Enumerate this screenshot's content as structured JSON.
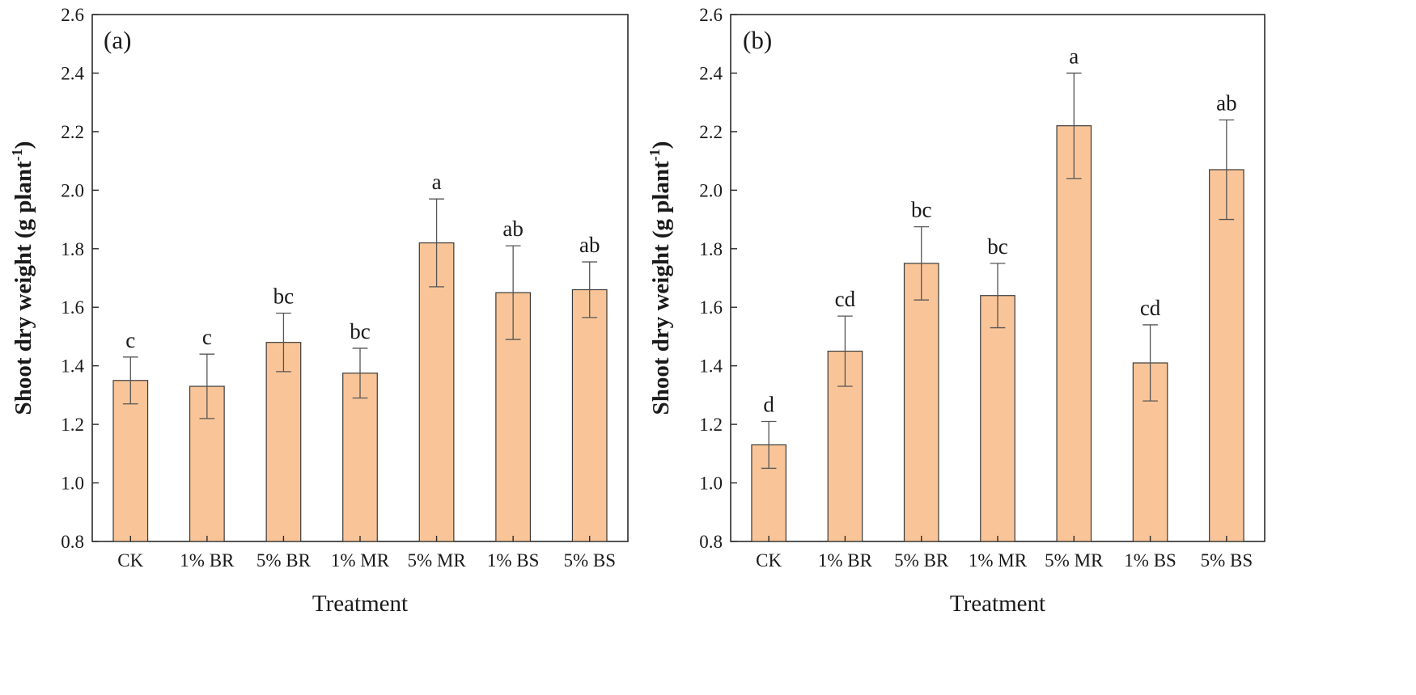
{
  "chart_data": [
    {
      "type": "bar",
      "panel_label": "(a)",
      "categories": [
        "CK",
        "1% BR",
        "5% BR",
        "1% MR",
        "5% MR",
        "1% BS",
        "5% BS"
      ],
      "values": [
        1.35,
        1.33,
        1.48,
        1.375,
        1.82,
        1.65,
        1.66
      ],
      "errors": [
        0.08,
        0.11,
        0.1,
        0.085,
        0.15,
        0.16,
        0.095
      ],
      "significance": [
        "c",
        "c",
        "bc",
        "bc",
        "a",
        "ab",
        "ab"
      ],
      "xlabel": "Treatment",
      "ylabel": "Shoot dry weight (g plant",
      "ylabel_superscript": "-1",
      "ylabel_suffix": ")",
      "ylim": [
        0.8,
        2.6
      ],
      "yticks": [
        "0.8",
        "1.0",
        "1.2",
        "1.4",
        "1.6",
        "1.8",
        "2.0",
        "2.2",
        "2.4",
        "2.6"
      ],
      "bar_color": "#f9c598",
      "grid": false,
      "legend": "none"
    },
    {
      "type": "bar",
      "panel_label": "(b)",
      "categories": [
        "CK",
        "1% BR",
        "5% BR",
        "1% MR",
        "5% MR",
        "1% BS",
        "5% BS"
      ],
      "values": [
        1.13,
        1.45,
        1.75,
        1.64,
        2.22,
        1.41,
        2.07
      ],
      "errors": [
        0.08,
        0.12,
        0.125,
        0.11,
        0.18,
        0.13,
        0.17
      ],
      "significance": [
        "d",
        "cd",
        "bc",
        "bc",
        "a",
        "cd",
        "ab"
      ],
      "xlabel": "Treatment",
      "ylabel": "Shoot dry weight (g plant",
      "ylabel_superscript": "-1",
      "ylabel_suffix": ")",
      "ylim": [
        0.8,
        2.6
      ],
      "yticks": [
        "0.8",
        "1.0",
        "1.2",
        "1.4",
        "1.6",
        "1.8",
        "2.0",
        "2.2",
        "2.4",
        "2.6"
      ],
      "bar_color": "#f9c598",
      "grid": false,
      "legend": "none"
    }
  ]
}
